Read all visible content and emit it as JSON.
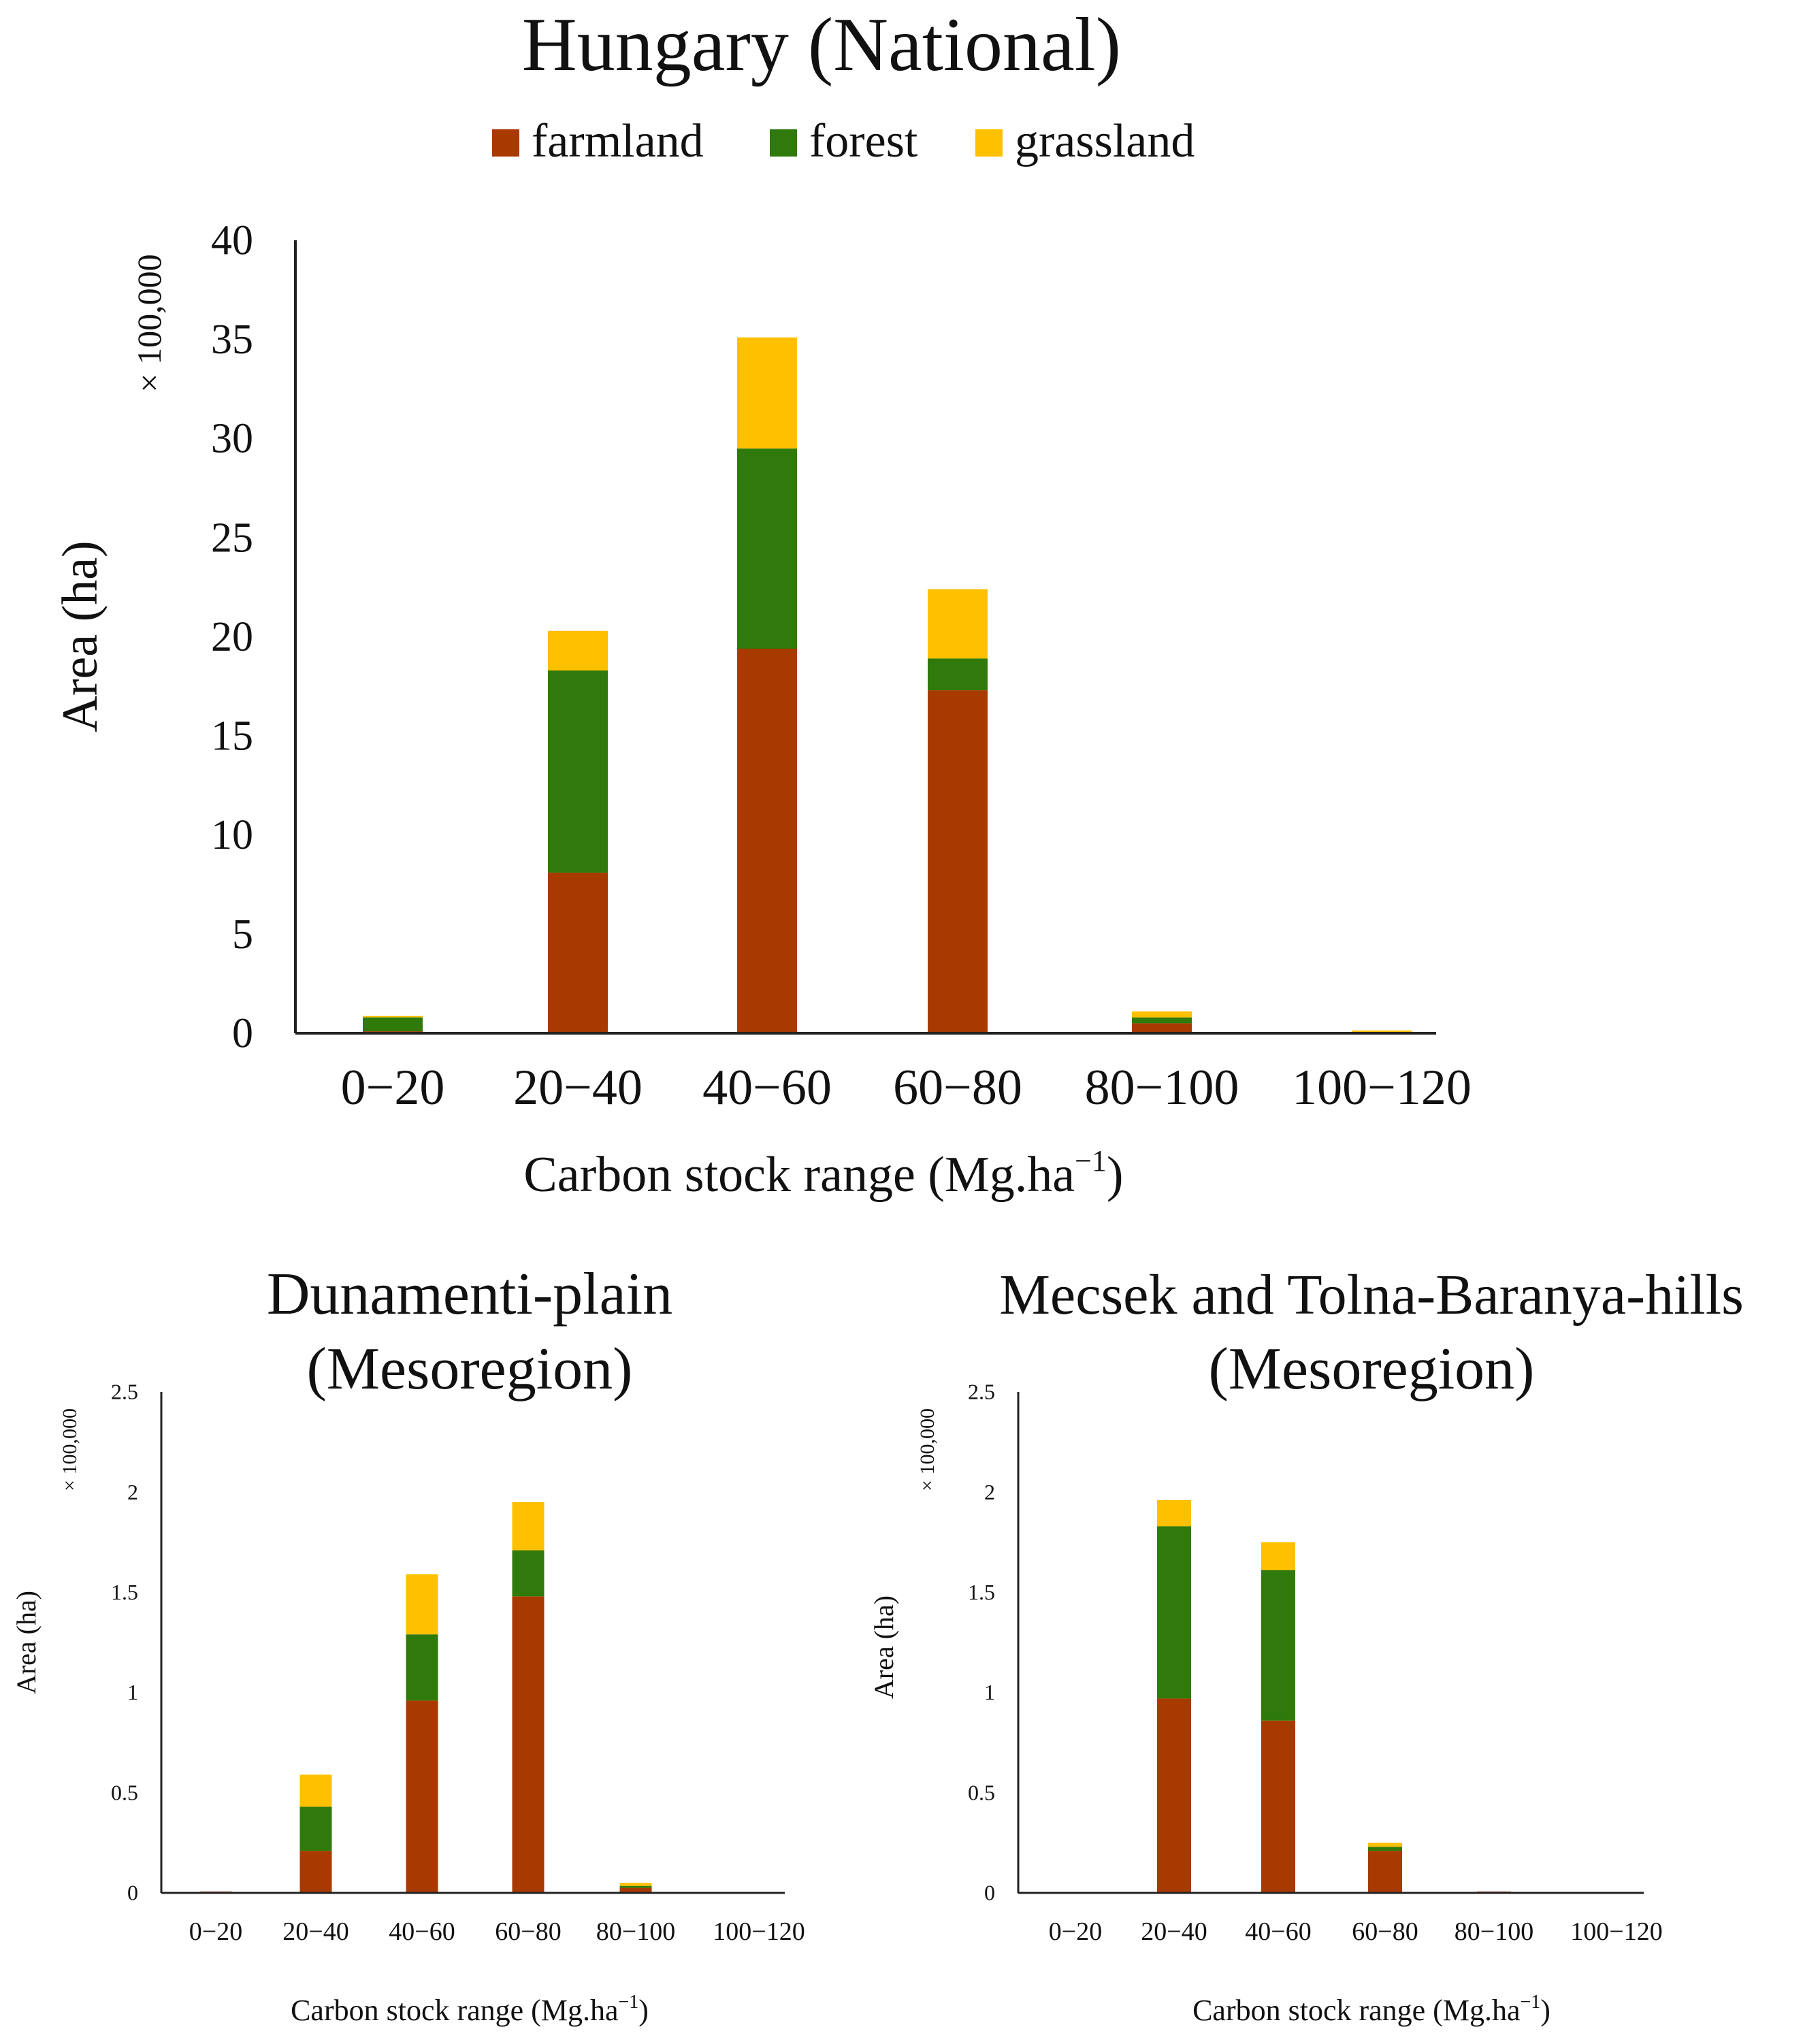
{
  "legend": {
    "placement": "top-center",
    "items": [
      {
        "label": "farmland",
        "color": "#A83A00"
      },
      {
        "label": "forest",
        "color": "#2F7A0B"
      },
      {
        "label": "grassland",
        "color": "#FFC000"
      }
    ]
  },
  "chart_data": [
    {
      "type": "bar",
      "stacked": true,
      "title": "Hungary (National)",
      "xlabel": "Carbon stock range (Mg.ha",
      "xlabel_sup": "−1",
      "xlabel_close": ")",
      "ylabel": "Area (ha)",
      "yscale_label": "× 100,000",
      "ylim": [
        0,
        40
      ],
      "yticks": [
        "0",
        "5",
        "10",
        "15",
        "20",
        "25",
        "30",
        "35",
        "40"
      ],
      "grid": false,
      "categories": [
        "0−20",
        "20−40",
        "40−60",
        "60−80",
        "80−100",
        "100−120"
      ],
      "series": [
        {
          "name": "farmland",
          "color": "#A83A00",
          "values": [
            0.1,
            8.1,
            19.4,
            17.3,
            0.5,
            0.05
          ]
        },
        {
          "name": "forest",
          "color": "#2F7A0B",
          "values": [
            0.7,
            10.2,
            10.1,
            1.6,
            0.3,
            0.02
          ]
        },
        {
          "name": "grassland",
          "color": "#FFC000",
          "values": [
            0.05,
            2.0,
            5.6,
            3.5,
            0.3,
            0.03
          ]
        }
      ]
    },
    {
      "type": "bar",
      "stacked": true,
      "title": "Dunamenti-plain",
      "title2": "(Mesoregion)",
      "xlabel": "Carbon stock range (Mg.ha",
      "xlabel_sup": "−1",
      "xlabel_close": ")",
      "ylabel": "Area (ha)",
      "yscale_label": "× 100,000",
      "ylim": [
        0,
        2.5
      ],
      "yticks": [
        "0",
        "0.5",
        "1",
        "1.5",
        "2",
        "2.5"
      ],
      "grid": false,
      "categories": [
        "0−20",
        "20−40",
        "40−60",
        "60−80",
        "80−100",
        "100−120"
      ],
      "series": [
        {
          "name": "farmland",
          "color": "#A83A00",
          "values": [
            0.005,
            0.21,
            0.96,
            1.48,
            0.025,
            0.0
          ]
        },
        {
          "name": "forest",
          "color": "#2F7A0B",
          "values": [
            0.0,
            0.22,
            0.33,
            0.23,
            0.01,
            0.0
          ]
        },
        {
          "name": "grassland",
          "color": "#FFC000",
          "values": [
            0.0,
            0.16,
            0.3,
            0.24,
            0.015,
            0.0
          ]
        }
      ]
    },
    {
      "type": "bar",
      "stacked": true,
      "title": "Mecsek and Tolna-Baranya-hills",
      "title2": "(Mesoregion)",
      "xlabel": "Carbon stock range (Mg.ha",
      "xlabel_sup": "−1",
      "xlabel_close": ")",
      "ylabel": "Area (ha)",
      "yscale_label": "× 100,000",
      "ylim": [
        0,
        2.5
      ],
      "yticks": [
        "0",
        "0.5",
        "1",
        "1.5",
        "2",
        "2.5"
      ],
      "grid": false,
      "categories": [
        "0−20",
        "20−40",
        "40−60",
        "60−80",
        "80−100",
        "100−120"
      ],
      "series": [
        {
          "name": "farmland",
          "color": "#A83A00",
          "values": [
            0.0,
            0.97,
            0.86,
            0.21,
            0.005,
            0.0
          ]
        },
        {
          "name": "forest",
          "color": "#2F7A0B",
          "values": [
            0.0,
            0.86,
            0.75,
            0.02,
            0.0,
            0.0
          ]
        },
        {
          "name": "grassland",
          "color": "#FFC000",
          "values": [
            0.0,
            0.13,
            0.14,
            0.02,
            0.0,
            0.0
          ]
        }
      ]
    }
  ]
}
